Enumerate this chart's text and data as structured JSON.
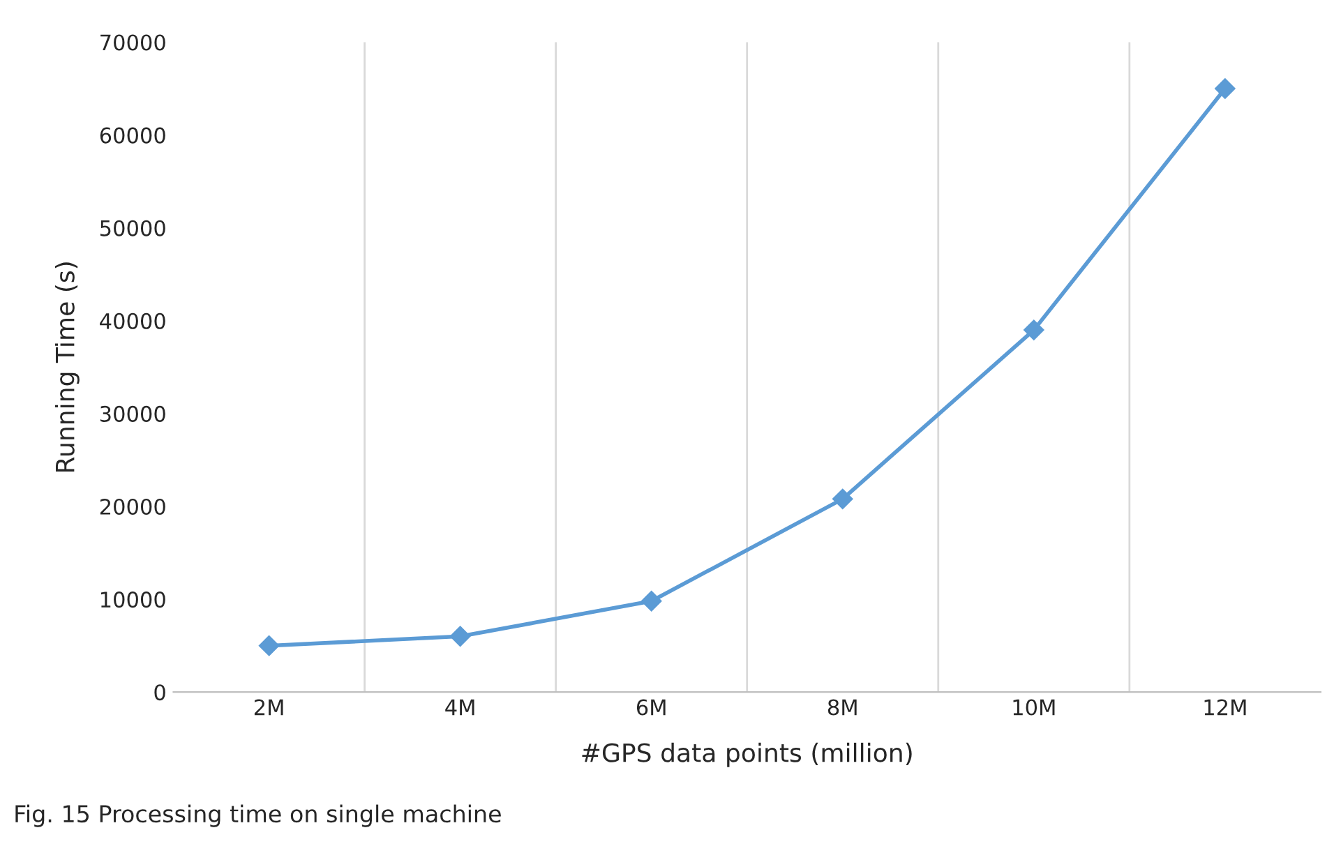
{
  "chart_data": {
    "type": "line",
    "xlabel": "#GPS data points (million)",
    "ylabel": "Running Time (s)",
    "categories": [
      "2M",
      "4M",
      "6M",
      "8M",
      "10M",
      "12M"
    ],
    "series": [
      {
        "color": "#5b9bd5",
        "values": [
          5000,
          6000,
          9800,
          20800,
          39000,
          65000
        ]
      }
    ],
    "ylim": [
      0,
      70000
    ],
    "yticks": [
      0,
      10000,
      20000,
      30000,
      40000,
      50000,
      60000,
      70000
    ],
    "grid": "x",
    "marker": "diamond",
    "line_style": "solid",
    "annotations": [
      "Fig. 15 Processing time on single machine"
    ]
  }
}
